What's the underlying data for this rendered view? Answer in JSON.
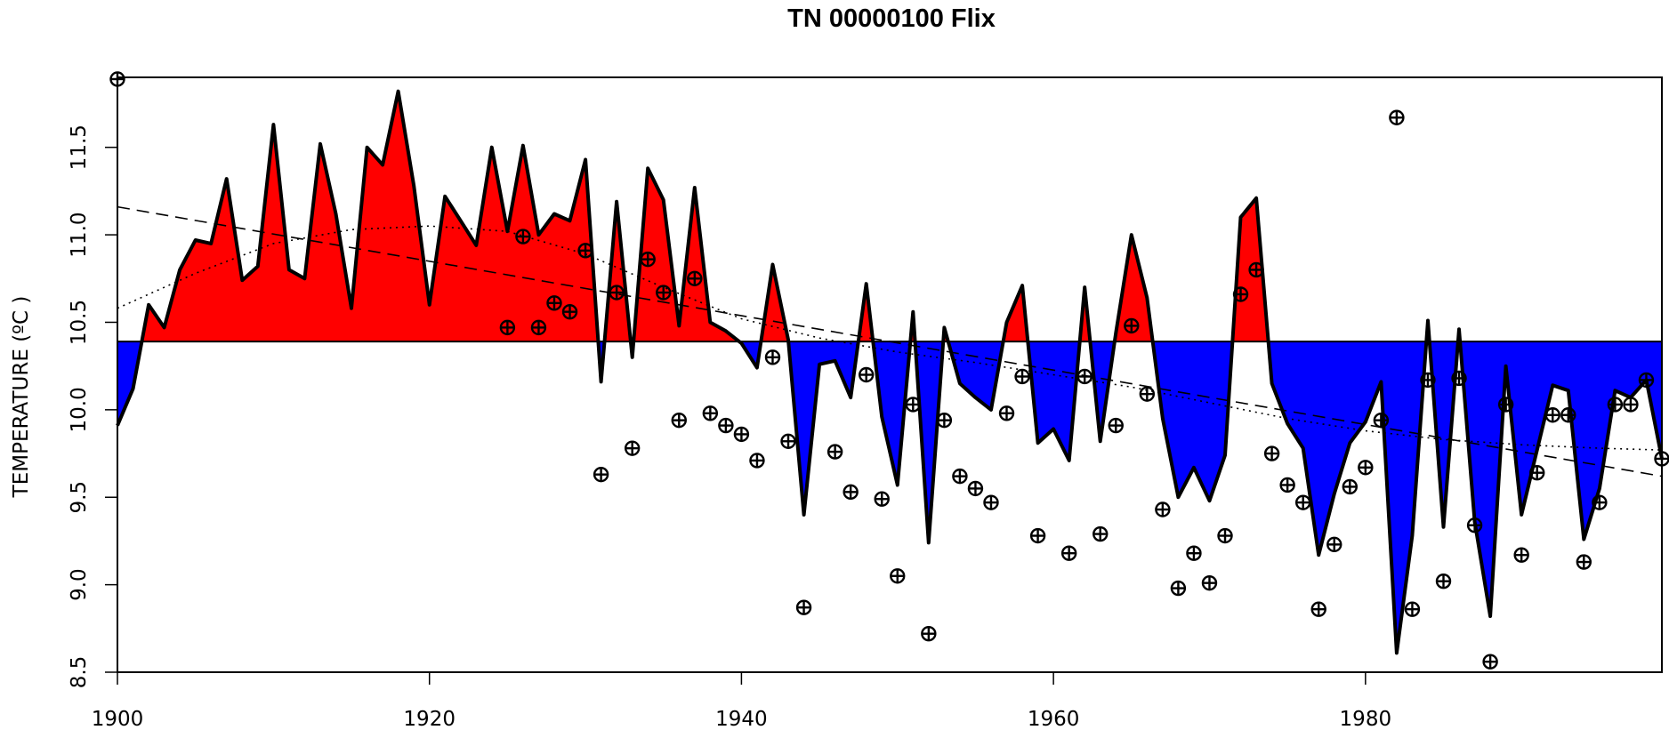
{
  "chart_data": {
    "type": "area",
    "title": "TN 00000100 Flix",
    "xlabel": "",
    "ylabel": "TEMPERATURE (ºC )",
    "xlim": [
      1900,
      1999
    ],
    "ylim": [
      8.5,
      11.9
    ],
    "x_ticks": [
      1900,
      1920,
      1940,
      1960,
      1980
    ],
    "y_ticks": [
      8.5,
      9.0,
      9.5,
      10.0,
      10.5,
      11.0,
      11.5
    ],
    "y_tick_labels": [
      "8.5",
      "9.0",
      "9.5",
      "10.0",
      "10.5",
      "11.0",
      "11.5"
    ],
    "baseline": 10.39,
    "colors": {
      "above": "#ff0000",
      "below": "#0000ff",
      "line": "#000000"
    },
    "smoothed_series": {
      "x": [
        1900,
        1901,
        1902,
        1903,
        1904,
        1905,
        1906,
        1907,
        1908,
        1909,
        1910,
        1911,
        1912,
        1913,
        1914,
        1915,
        1916,
        1917,
        1918,
        1919,
        1920,
        1921,
        1922,
        1923,
        1924,
        1925,
        1926,
        1927,
        1928,
        1929,
        1930,
        1931,
        1932,
        1933,
        1934,
        1935,
        1936,
        1937,
        1938,
        1939,
        1940,
        1941,
        1942,
        1943,
        1944,
        1945,
        1946,
        1947,
        1948,
        1949,
        1950,
        1951,
        1952,
        1953,
        1954,
        1955,
        1956,
        1957,
        1958,
        1959,
        1960,
        1961,
        1962,
        1963,
        1964,
        1965,
        1966,
        1967,
        1968,
        1969,
        1970,
        1971,
        1972,
        1973,
        1974,
        1975,
        1976,
        1977,
        1978,
        1979,
        1980,
        1981,
        1982,
        1983,
        1984,
        1985,
        1986,
        1987,
        1988,
        1989,
        1990,
        1991,
        1992,
        1993,
        1994,
        1995,
        1996,
        1997,
        1998,
        1999
      ],
      "y": [
        9.91,
        10.12,
        10.6,
        10.47,
        10.8,
        10.97,
        10.95,
        11.32,
        10.74,
        10.82,
        11.63,
        10.8,
        10.75,
        11.52,
        11.12,
        10.58,
        11.5,
        11.4,
        11.82,
        11.28,
        10.6,
        11.22,
        11.08,
        10.94,
        11.5,
        11.02,
        11.51,
        11.0,
        11.12,
        11.08,
        11.43,
        10.16,
        11.19,
        10.3,
        11.38,
        11.2,
        10.48,
        11.27,
        10.5,
        10.45,
        10.38,
        10.24,
        10.83,
        10.4,
        9.4,
        10.26,
        10.28,
        10.07,
        10.72,
        9.96,
        9.57,
        10.56,
        9.24,
        10.47,
        10.15,
        10.07,
        10.0,
        10.5,
        10.71,
        9.81,
        9.89,
        9.71,
        10.7,
        9.82,
        10.44,
        11.0,
        10.64,
        9.95,
        9.5,
        9.67,
        9.48,
        9.74,
        11.1,
        11.21,
        10.15,
        9.92,
        9.78,
        9.17,
        9.52,
        9.81,
        9.93,
        10.16,
        8.61,
        9.28,
        10.51,
        9.33,
        10.46,
        9.36,
        8.82,
        10.25,
        9.4,
        9.77,
        10.14,
        10.11,
        9.26,
        9.55,
        10.11,
        10.07,
        10.17,
        9.72
      ]
    },
    "annual_points": {
      "x": [
        1900,
        1925,
        1926,
        1927,
        1928,
        1929,
        1930,
        1931,
        1932,
        1933,
        1934,
        1935,
        1936,
        1937,
        1938,
        1939,
        1940,
        1941,
        1942,
        1943,
        1944,
        1946,
        1947,
        1948,
        1949,
        1950,
        1951,
        1952,
        1953,
        1954,
        1955,
        1956,
        1957,
        1958,
        1959,
        1961,
        1962,
        1963,
        1964,
        1965,
        1966,
        1967,
        1968,
        1969,
        1970,
        1971,
        1972,
        1973,
        1974,
        1975,
        1976,
        1977,
        1978,
        1979,
        1980,
        1981,
        1982,
        1983,
        1984,
        1985,
        1986,
        1987,
        1988,
        1989,
        1990,
        1991,
        1992,
        1993,
        1994,
        1995,
        1996,
        1997,
        1998,
        1999
      ],
      "y": [
        11.89,
        10.47,
        10.99,
        10.47,
        10.61,
        10.56,
        10.91,
        9.63,
        10.67,
        9.78,
        10.86,
        10.67,
        9.94,
        10.75,
        9.98,
        9.91,
        9.86,
        9.71,
        10.3,
        9.82,
        8.87,
        9.76,
        9.53,
        10.2,
        9.49,
        9.05,
        10.03,
        8.72,
        9.94,
        9.62,
        9.55,
        9.47,
        9.98,
        10.19,
        9.28,
        9.18,
        10.19,
        9.29,
        9.91,
        10.48,
        10.09,
        9.43,
        8.98,
        9.18,
        9.01,
        9.28,
        10.66,
        10.8,
        9.75,
        9.57,
        9.47,
        8.86,
        9.23,
        9.56,
        9.67,
        9.94,
        11.67,
        8.86,
        10.17,
        9.02,
        10.18,
        9.34,
        8.56,
        10.03,
        9.17,
        9.64,
        9.97,
        9.97,
        9.13,
        9.47,
        10.03,
        10.03,
        10.17,
        9.72
      ]
    },
    "linear_trend": {
      "x": [
        1900,
        1999
      ],
      "y": [
        11.16,
        9.62
      ]
    },
    "loess_curve": {
      "x": [
        1900,
        1905,
        1910,
        1915,
        1920,
        1925,
        1930,
        1935,
        1940,
        1945,
        1950,
        1955,
        1960,
        1965,
        1970,
        1975,
        1980,
        1985,
        1990,
        1995,
        1999
      ],
      "y": [
        10.58,
        10.78,
        10.95,
        11.03,
        11.05,
        11.02,
        10.89,
        10.7,
        10.52,
        10.41,
        10.33,
        10.27,
        10.2,
        10.13,
        10.04,
        9.95,
        9.88,
        9.83,
        9.8,
        9.78,
        9.77
      ]
    }
  }
}
